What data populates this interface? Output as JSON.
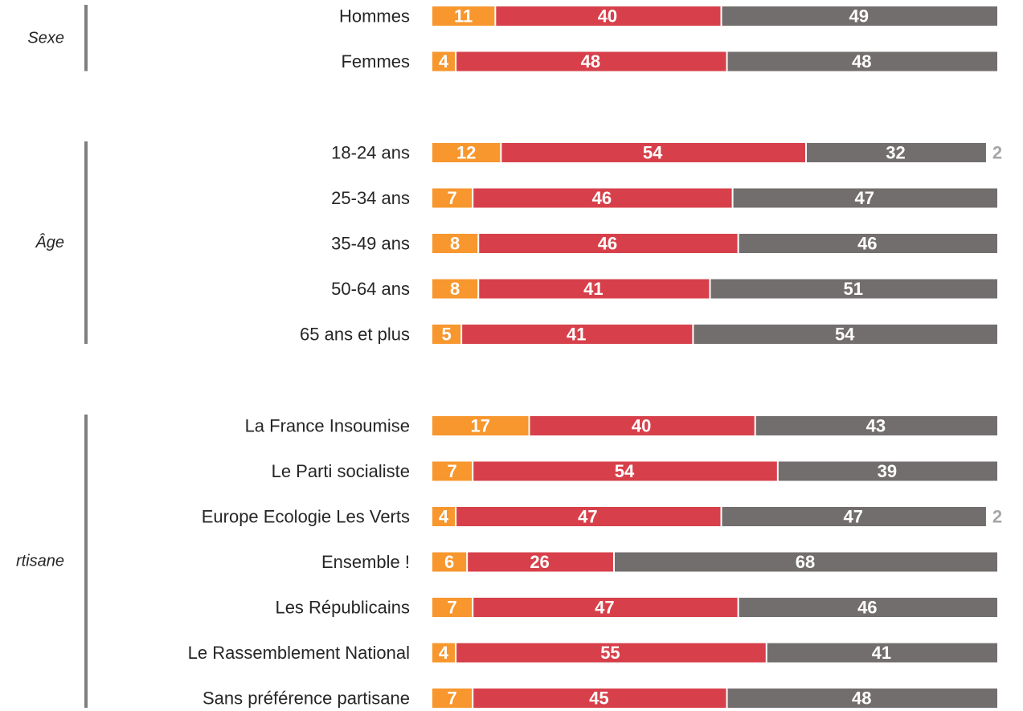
{
  "chart_data": {
    "type": "bar",
    "orientation": "horizontal",
    "stacked": true,
    "xlim": [
      0,
      100
    ],
    "colors": [
      "#f7972e",
      "#d7404a",
      "#736e6e",
      "#bfbfbf"
    ],
    "groups": [
      {
        "label": "Sexe",
        "categories": [
          "Hommes",
          "Femmes"
        ],
        "series": [
          {
            "values": [
              11,
              4
            ]
          },
          {
            "values": [
              40,
              48
            ]
          },
          {
            "values": [
              49,
              48
            ]
          },
          {
            "values": [
              null,
              null
            ]
          }
        ]
      },
      {
        "label": "Âge",
        "categories": [
          "18-24 ans",
          "25-34 ans",
          "35-49 ans",
          "50-64 ans",
          "65 ans et plus"
        ],
        "series": [
          {
            "values": [
              12,
              7,
              8,
              8,
              5
            ]
          },
          {
            "values": [
              54,
              46,
              46,
              41,
              41
            ]
          },
          {
            "values": [
              32,
              47,
              46,
              51,
              54
            ]
          },
          {
            "values": [
              2,
              null,
              null,
              null,
              null
            ]
          }
        ]
      },
      {
        "label": "rtisane",
        "categories": [
          "La France Insoumise",
          "Le Parti socialiste",
          "Europe Ecologie Les Verts",
          "Ensemble !",
          "Les Républicains",
          "Le Rassemblement National",
          "Sans préférence partisane"
        ],
        "series": [
          {
            "values": [
              17,
              7,
              4,
              6,
              7,
              4,
              7
            ]
          },
          {
            "values": [
              40,
              54,
              47,
              26,
              47,
              55,
              45
            ]
          },
          {
            "values": [
              43,
              39,
              47,
              68,
              46,
              41,
              48
            ]
          },
          {
            "values": [
              null,
              null,
              2,
              null,
              null,
              null,
              null
            ]
          }
        ]
      }
    ]
  }
}
